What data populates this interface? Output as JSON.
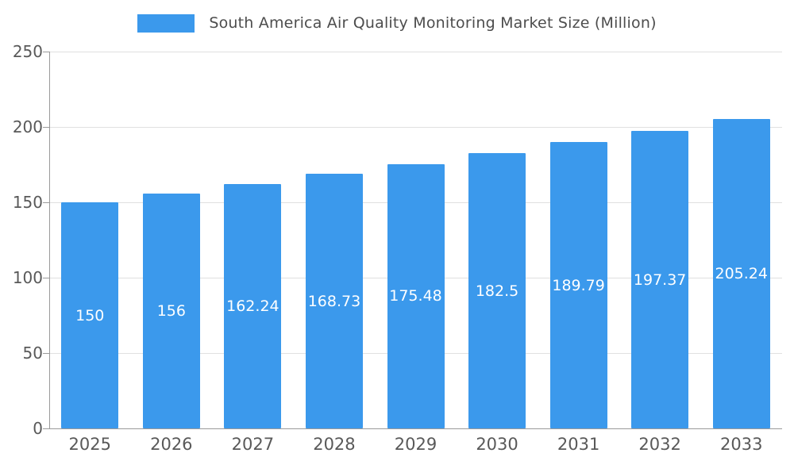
{
  "chart_data": {
    "type": "bar",
    "title": "South America Air Quality Monitoring Market Size (Million)",
    "categories": [
      "2025",
      "2026",
      "2027",
      "2028",
      "2029",
      "2030",
      "2031",
      "2032",
      "2033"
    ],
    "values": [
      150,
      156,
      162.24,
      168.73,
      175.48,
      182.5,
      189.79,
      197.37,
      205.24
    ],
    "value_labels": [
      "150",
      "156",
      "162.24",
      "168.73",
      "175.48",
      "182.5",
      "189.79",
      "197.37",
      "205.24"
    ],
    "xlabel": "",
    "ylabel": "",
    "ylim": [
      0,
      250
    ],
    "yticks": [
      0,
      50,
      100,
      150,
      200,
      250
    ],
    "grid": "horizontal",
    "legend_position": "top-center",
    "bar_color": "#3b99ec",
    "axis_color": "#9a9a9a",
    "grid_color": "#e0e0e0",
    "tick_label_color": "#595959",
    "value_label_color": "#ffffff"
  }
}
